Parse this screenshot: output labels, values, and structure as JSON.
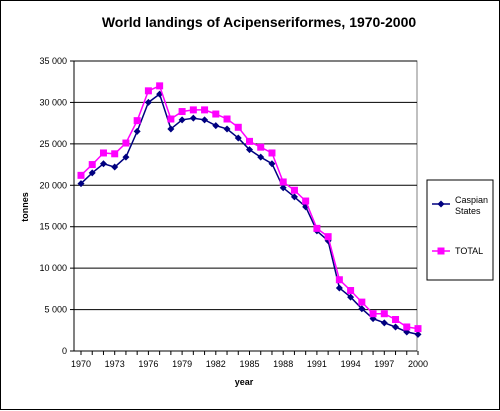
{
  "chart_data": {
    "type": "line",
    "title": "World landings of Acipenseriformes,  1970-2000",
    "xlabel": "year",
    "ylabel": "tonnes",
    "ylim": [
      0,
      35000
    ],
    "xlim": [
      1970,
      2000
    ],
    "y_ticks": [
      "0",
      "5 000",
      "10 000",
      "15 000",
      "20 000",
      "25 000",
      "30 000",
      "35 000"
    ],
    "x_ticks": [
      "1970",
      "1973",
      "1976",
      "1979",
      "1982",
      "1985",
      "1988",
      "1991",
      "1994",
      "1997",
      "2000"
    ],
    "grid": "horizontal",
    "legend_position": "right",
    "x": [
      1970,
      1971,
      1972,
      1973,
      1974,
      1975,
      1976,
      1977,
      1978,
      1979,
      1980,
      1981,
      1982,
      1983,
      1984,
      1985,
      1986,
      1987,
      1988,
      1989,
      1990,
      1991,
      1992,
      1993,
      1994,
      1995,
      1996,
      1997,
      1998,
      1999,
      2000
    ],
    "series": [
      {
        "name": "Caspian States",
        "color": "#000080",
        "marker": "diamond",
        "values": [
          20200,
          21500,
          22600,
          22200,
          23400,
          26500,
          30000,
          31000,
          26800,
          27900,
          28100,
          27900,
          27200,
          26800,
          25700,
          24300,
          23400,
          22600,
          19700,
          18600,
          17400,
          14500,
          13300,
          7600,
          6500,
          5100,
          3900,
          3400,
          2900,
          2300,
          2000
        ]
      },
      {
        "name": "TOTAL",
        "color": "#ff00ff",
        "marker": "square",
        "values": [
          21200,
          22500,
          23900,
          23800,
          25100,
          27800,
          31400,
          32000,
          28000,
          28900,
          29100,
          29100,
          28600,
          28000,
          27000,
          25300,
          24600,
          23900,
          20400,
          19400,
          18100,
          14800,
          13800,
          8600,
          7300,
          5900,
          4500,
          4500,
          3800,
          2900,
          2700
        ]
      }
    ]
  }
}
